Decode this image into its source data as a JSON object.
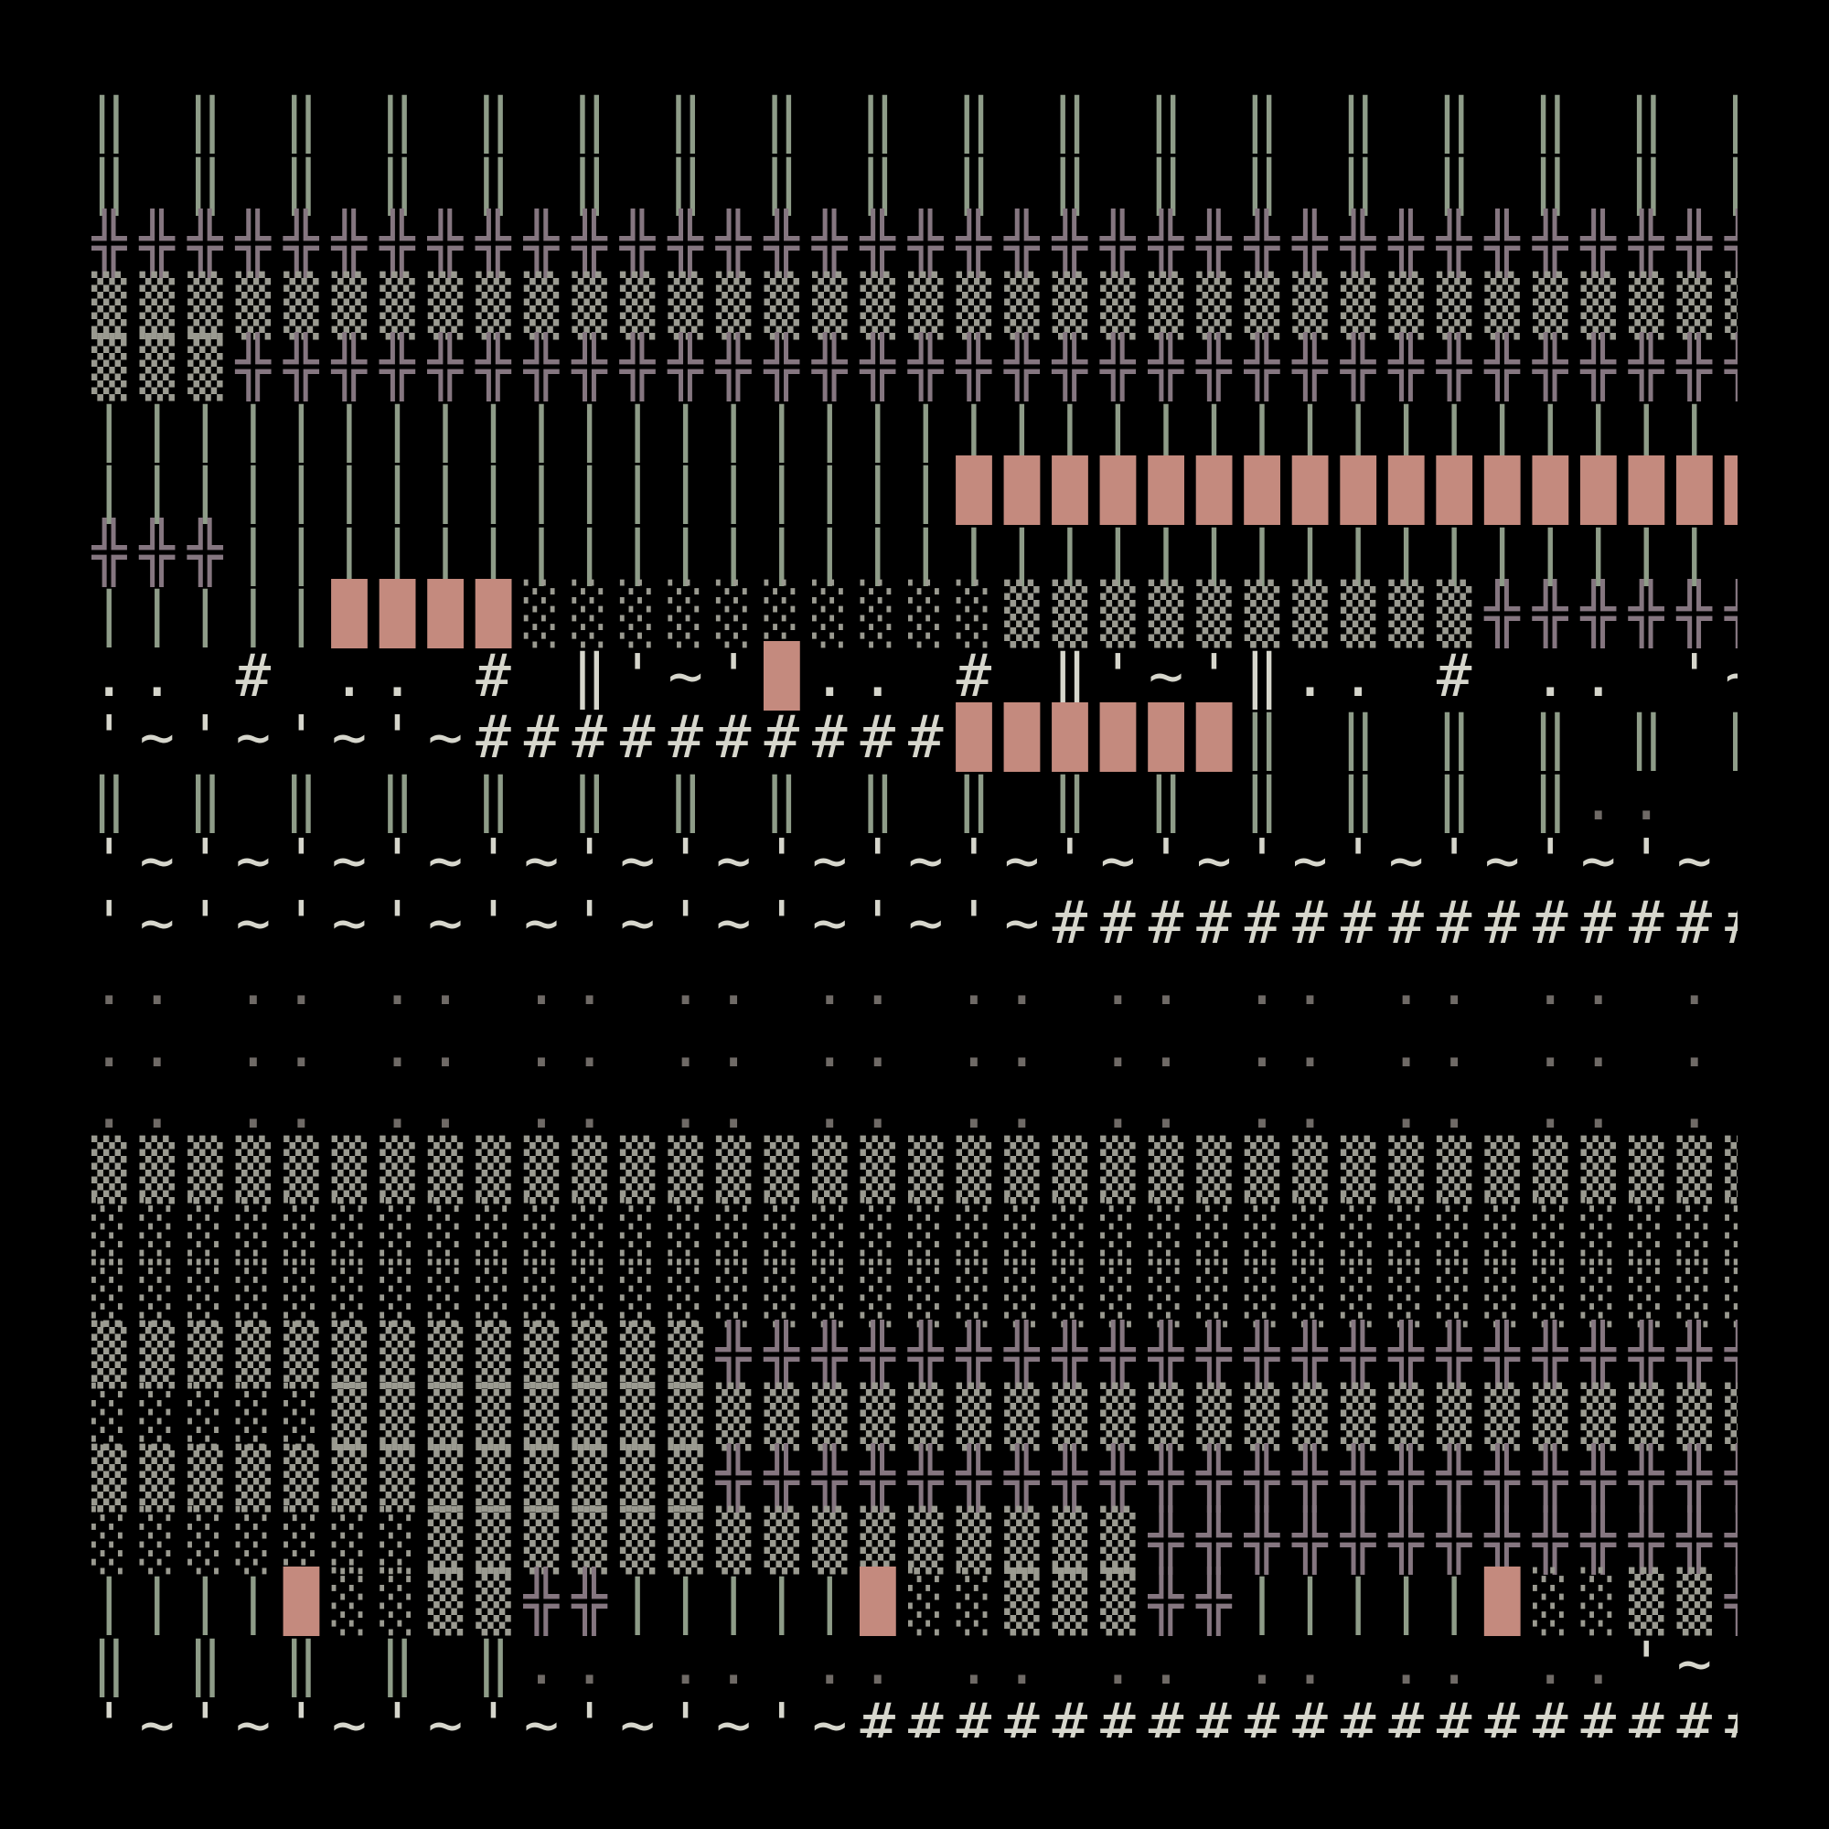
{
  "rows": [
    [
      {
        "t": "‖ ‖ ‖ ‖ ‖ ‖ ‖ ‖ ‖ ‖ ‖ ‖ ‖ ‖ ‖ ‖ ‖ ‖ ‖ ‖ ‖ ‖ ‖ ‖ ‖ ‖ ‖ ‖ ‖ ‖ ‖ ‖ ‖ ‖ ‖ ‖ ‖",
        "c": "c-green"
      }
    ],
    [
      {
        "t": "‖ ‖ ‖ ‖ ‖ ‖ ‖ ‖ ‖ ‖ ‖ ‖ ‖ ‖ ‖ ‖ ‖ ‖ ‖ ‖ ‖ ‖ ‖ ‖ ‖ ‖ ‖ ‖ ‖ ‖ ‖ ‖ ‖ ‖ ‖ ‖ ‖",
        "c": "c-green"
      }
    ],
    [
      {
        "t": "╬╬╬╬╬╬╬╬╬╬╬╬╬╬╬╬╬╬╬╬╬╬╬╬╬╬╬╬╬╬╬╬╬╬╬╬╬╬╬",
        "c": "c-mauve"
      }
    ],
    [
      {
        "t": "▒▒▒▒▒▒▒▒▒▒▒▒▒▒▒▒▒▒▒▒▒▒▒▒▒▒▒▒▒▒▒▒▒▒▒▒▒▒▒",
        "c": "c-gray"
      }
    ],
    [
      {
        "t": "▒▒▒",
        "c": "c-gray"
      },
      {
        "t": "╬╬╬╬╬╬╬╬╬╬╬╬╬╬╬╬╬╬╬╬╬╬╬╬╬╬╬╬╬╬╬╬╬╬╬╬",
        "c": "c-mauve"
      }
    ],
    [
      {
        "t": "|||||||||||||||||||||||||||||||||||||||||||",
        "c": "c-green"
      },
      {
        "t": "█████████████████",
        "c": "c-pink"
      }
    ],
    [
      {
        "t": "||||||||||||||||||",
        "c": "c-green"
      },
      {
        "t": "█████████████████",
        "c": "c-pink"
      },
      {
        "t": "░░░░░░░░░░░░░",
        "c": "c-gray"
      }
    ],
    [
      {
        "t": "╬╬╬",
        "c": "c-mauve"
      },
      {
        "t": "||||||||||||||||||||||||||||||||||||||||||||",
        "c": "c-green"
      },
      {
        "t": "███████████",
        "c": "c-pink"
      },
      {
        "t": "░░░",
        "c": "c-gray"
      }
    ],
    [
      {
        "t": "|||||",
        "c": "c-green"
      },
      {
        "t": "████",
        "c": "c-pink"
      },
      {
        "t": "░░░░░░░░░░▒▒▒▒▒▒▒▒▒▒",
        "c": "c-gray"
      },
      {
        "t": "╬╬╬╬╬╬╬╬╬╬",
        "c": "c-mauve"
      }
    ],
    [
      {
        "t": ".. # .. # ‖'~'",
        "c": "c-white"
      },
      {
        "t": "█",
        "c": "c-pink"
      },
      {
        "t": ".. # ‖'~'‖.. # .. '~'‖'~# .. '~'‖.. # ‖'~'",
        "c": "c-white"
      },
      {
        "t": "█",
        "c": "c-pink"
      },
      {
        "t": ".. # ‖'~# ‖'~'",
        "c": "c-white"
      },
      {
        "t": "█",
        "c": "c-pink"
      },
      {
        "t": ".. #",
        "c": "c-white"
      }
    ],
    [
      {
        "t": "'~'~'~'~##########",
        "c": "c-white"
      },
      {
        "t": "██████",
        "c": "c-pink"
      },
      {
        "t": "‖ ‖ ‖ ‖ ‖ ‖ ‖ ‖ ‖ ‖ ‖",
        "c": "c-green"
      },
      {
        "t": ".. .. .. .. .. ..",
        "c": "c-dim"
      }
    ],
    [
      {
        "t": "‖ ‖ ‖ ‖ ‖ ‖ ‖ ‖ ‖ ‖ ‖ ‖ ‖ ‖ ‖ ‖",
        "c": "c-green"
      },
      {
        "t": ".. .. .. .. .. .. .. .. .. .. .. .. .. .. .. .. .. .. .. .. ..",
        "c": "c-dim"
      }
    ],
    [
      {
        "t": "'~'~'~'~'~'~'~'~'~'~'~'~'~'~'~'~'~'~'~",
        "c": "c-white"
      },
      {
        "t": "###################",
        "c": "c-white"
      }
    ],
    [
      {
        "t": "'~'~'~'~'~'~'~'~'~'~",
        "c": "c-white"
      },
      {
        "t": "##############################",
        "c": "c-white"
      }
    ],
    [
      {
        "t": ".. .. .. .. .. .. .. .. .. .. .. .. .. .. .. .. .. .. .. .. .. .. .. .. .. .. .. .. .. .. .. .. .. .. .. .. .. .. ..",
        "c": "c-dim"
      }
    ],
    [
      {
        "t": ".. .. .. .. .. .. .. .. .. .. .. .. .. .. .. .. .. .. .. .. .. .. .. .. .. .. .. .. .. .. .. .. .. .. .. .. .. .. ..",
        "c": "c-dim"
      }
    ],
    [
      {
        "t": ".. .. .. .. .. .. .. .. .. .. .. .. .. .. .. .. .. .. .. .. .. .. .. .. .. .. .. .. .. .. .. .. .. .. .. .. .. .. ..",
        "c": "c-dim"
      }
    ],
    [
      {
        "t": "▒▒▒▒▒▒▒▒▒▒▒▒▒▒▒▒▒▒▒▒▒▒▒▒▒▒▒▒▒▒▒▒▒▒▒▒▒▒▒",
        "c": "c-gray"
      }
    ],
    [
      {
        "t": "░░░░░░░░░░░░░░░░░░░░░░░░░░░░░░░░░░░░░░░",
        "c": "c-gray"
      }
    ],
    [
      {
        "t": "░░░░░░░░░░░░░░░░░░░░░░░░░░░░░░░░░░░░░░░",
        "c": "c-gray"
      }
    ],
    [
      {
        "t": "▒▒▒▒▒▒▒▒▒▒▒▒▒",
        "c": "c-gray"
      },
      {
        "t": "╬╬╬╬╬╬╬╬╬╬╬╬╬╬╬╬╬╬╬╬╬╬╬╬╬╬",
        "c": "c-mauve"
      }
    ],
    [
      {
        "t": "░░░░░▒▒▒▒▒▒▒▒▒▒▒▒▒▒▒▒▒▒▒▒▒▒▒▒▒▒▒▒▒▒▒▒▒▒",
        "c": "c-gray"
      }
    ],
    [
      {
        "t": "▒▒▒▒▒▒▒▒▒▒▒▒▒",
        "c": "c-gray"
      },
      {
        "t": "╬╬╬╬╬╬╬╬╬╬╬╬╬╬╬╬╬╬╬╬╬╬╬╬╬╬",
        "c": "c-mauve"
      }
    ],
    [
      {
        "t": "░░░░░░░▒▒▒▒▒▒▒▒▒▒▒▒▒▒▒",
        "c": "c-gray"
      },
      {
        "t": "╬╬╬╬╬╬╬╬╬╬╬╬╬",
        "c": "c-mauve"
      },
      {
        "t": "||||||||",
        "c": "c-green"
      }
    ],
    [
      {
        "t": "||||",
        "c": "c-green"
      },
      {
        "t": "█",
        "c": "c-pink"
      },
      {
        "t": "░░▒▒",
        "c": "c-gray"
      },
      {
        "t": "╬╬",
        "c": "c-mauve"
      },
      {
        "t": "|||||",
        "c": "c-green"
      },
      {
        "t": "█",
        "c": "c-pink"
      },
      {
        "t": "░░▒▒▒",
        "c": "c-gray"
      },
      {
        "t": "╬╬",
        "c": "c-mauve"
      },
      {
        "t": "|||||",
        "c": "c-green"
      },
      {
        "t": "█",
        "c": "c-pink"
      },
      {
        "t": "░░▒▒",
        "c": "c-gray"
      },
      {
        "t": "╬╬╬",
        "c": "c-mauve"
      },
      {
        "t": "||||",
        "c": "c-green"
      },
      {
        "t": "█",
        "c": "c-pink"
      },
      {
        "t": "░░▒▒░",
        "c": "c-gray"
      }
    ],
    [
      {
        "t": "‖ ‖ ‖ ‖ ‖",
        "c": "c-green"
      },
      {
        "t": ".. .. .. .. .. .. .. ..",
        "c": "c-dim"
      },
      {
        "t": "'~'~'~'~'~'~'~'~",
        "c": "c-white"
      },
      {
        "t": "########",
        "c": "c-white"
      },
      {
        "t": "█████",
        "c": "c-pink"
      },
      {
        "t": "‖ ‖",
        "c": "c-green"
      }
    ],
    [
      {
        "t": "'~'~'~'~'~'~'~'~##########################",
        "c": "c-white"
      },
      {
        "t": "██████████",
        "c": "c-pink"
      }
    ]
  ]
}
